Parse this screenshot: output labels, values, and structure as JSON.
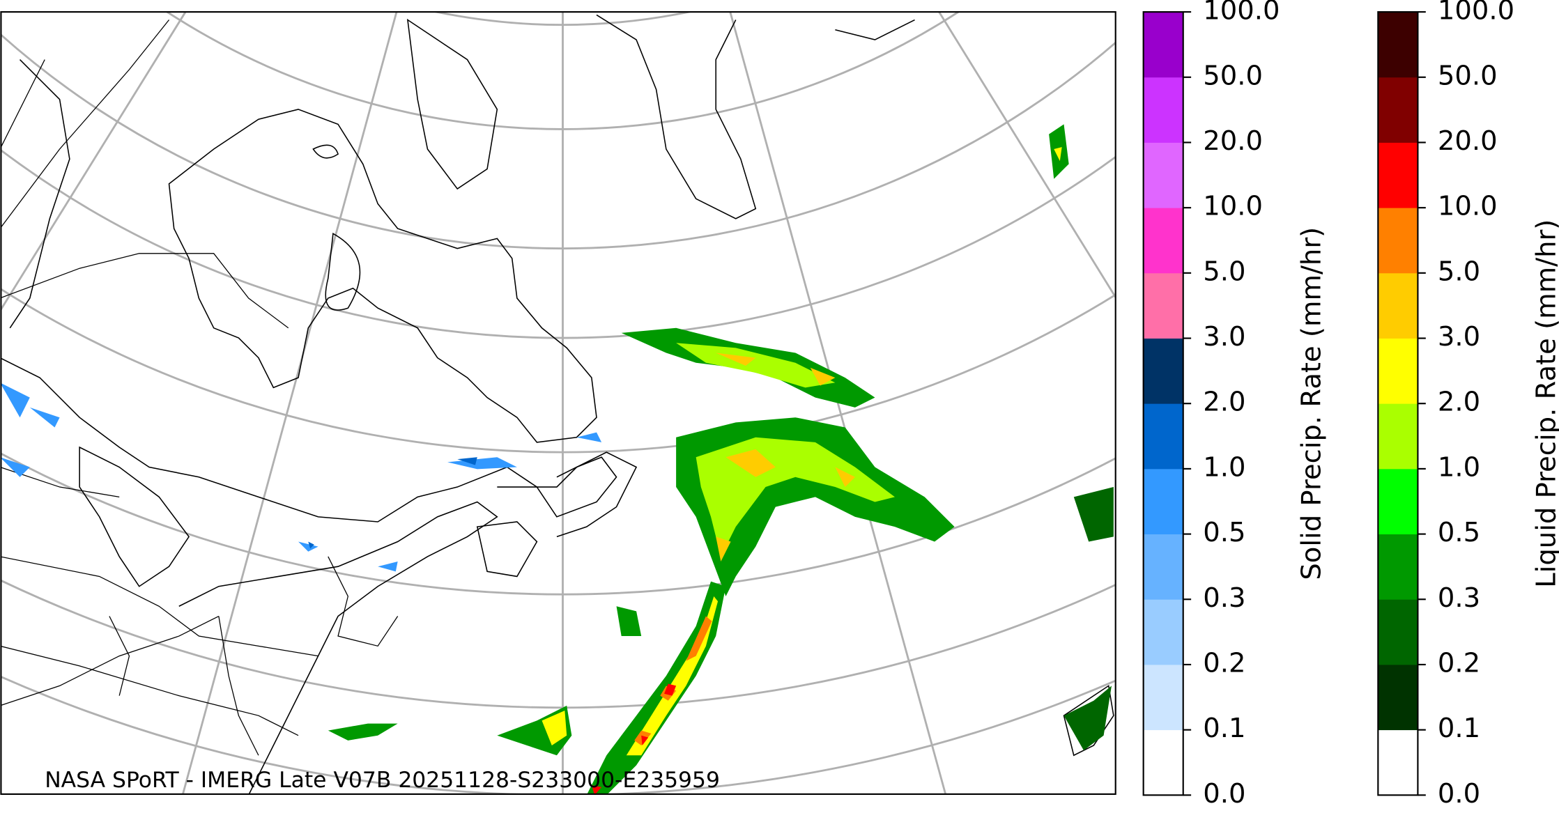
{
  "annotation": "NASA SPoRT - IMERG Late V07B 20251128-S233000-E235959",
  "colorbars": [
    {
      "label": "Solid Precip. Rate (mm/hr)",
      "colors": [
        "#ffffff",
        "#cce5ff",
        "#99ccff",
        "#66b2ff",
        "#3399ff",
        "#0066cc",
        "#003366",
        "#ff6fa8",
        "#ff33cc",
        "#e066ff",
        "#cc33ff",
        "#9900cc"
      ],
      "ticks": [
        {
          "value": 0,
          "label": "0.0"
        },
        0.1,
        0.2,
        0.3,
        0.5,
        {
          "value": 1,
          "label": "1.0"
        },
        {
          "value": 2,
          "label": "2.0"
        },
        {
          "value": 3,
          "label": "3.0"
        },
        {
          "value": 5,
          "label": "5.0"
        },
        {
          "value": 10,
          "label": "10.0"
        },
        {
          "value": 20,
          "label": "20.0"
        },
        {
          "value": 50,
          "label": "50.0"
        },
        {
          "value": 100,
          "label": "100.0"
        }
      ]
    },
    {
      "label": "Liquid Precip. Rate (mm/hr)",
      "colors": [
        "#ffffff",
        "#003300",
        "#006600",
        "#009900",
        "#00ff00",
        "#aaff00",
        "#ffff00",
        "#ffcc00",
        "#ff8000",
        "#ff0000",
        "#800000",
        "#3d0000"
      ],
      "ticks": [
        {
          "value": 0,
          "label": "0.0"
        },
        0.1,
        0.2,
        0.3,
        0.5,
        {
          "value": 1,
          "label": "1.0"
        },
        {
          "value": 2,
          "label": "2.0"
        },
        {
          "value": 3,
          "label": "3.0"
        },
        {
          "value": 5,
          "label": "5.0"
        },
        {
          "value": 10,
          "label": "10.0"
        },
        {
          "value": 20,
          "label": "20.0"
        },
        {
          "value": 50,
          "label": "50.0"
        },
        {
          "value": 100,
          "label": "100.0"
        }
      ]
    }
  ]
}
